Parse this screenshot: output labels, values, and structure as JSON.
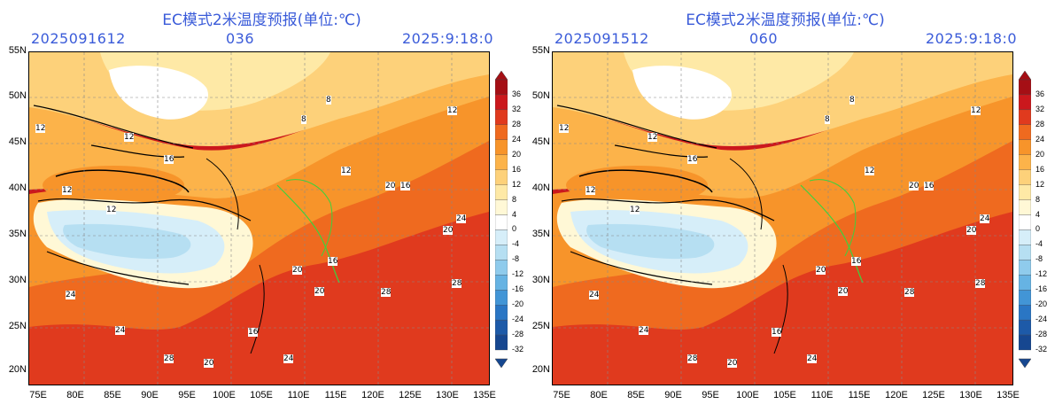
{
  "panels": [
    {
      "title": "EC模式2米温度预报(单位:℃)",
      "init": "2025091612",
      "lead": "036",
      "valid": "2025:9:18:0"
    },
    {
      "title": "EC模式2米温度预报(单位:℃)",
      "init": "2025091512",
      "lead": "060",
      "valid": "2025:9:18:0"
    }
  ],
  "lat_labels": [
    "55N",
    "50N",
    "45N",
    "40N",
    "35N",
    "30N",
    "25N",
    "20N"
  ],
  "lon_labels": [
    "75E",
    "80E",
    "85E",
    "90E",
    "95E",
    "100E",
    "105E",
    "110E",
    "115E",
    "120E",
    "125E",
    "130E",
    "135E"
  ],
  "colorbar": {
    "labels": [
      "36",
      "32",
      "28",
      "24",
      "20",
      "16",
      "12",
      "8",
      "4",
      "0",
      "-4",
      "-8",
      "-12",
      "-16",
      "-20",
      "-24",
      "-28",
      "-32"
    ],
    "colors": [
      "#a50f15",
      "#cb181d",
      "#e03a1e",
      "#ef6a1f",
      "#f7942a",
      "#fcb34a",
      "#fdd17a",
      "#fee9a6",
      "#fff8d6",
      "#ffffff",
      "#d6eef9",
      "#b6dff2",
      "#8fcbec",
      "#66b3e3",
      "#4295d6",
      "#2a76c4",
      "#1d5aa8",
      "#164790"
    ]
  },
  "panel1_labels": [
    "12",
    "12",
    "8",
    "16",
    "12",
    "20",
    "12",
    "16",
    "12",
    "20",
    "24",
    "20",
    "16",
    "28",
    "28",
    "24",
    "16",
    "20",
    "12",
    "8",
    "24",
    "20",
    "24",
    "28"
  ],
  "panel2_labels": [
    "12",
    "12",
    "8",
    "16",
    "12",
    "20",
    "12",
    "16",
    "12",
    "20",
    "24",
    "20",
    "16",
    "28",
    "28",
    "24",
    "16",
    "20",
    "12",
    "8",
    "24",
    "20",
    "24",
    "28"
  ]
}
